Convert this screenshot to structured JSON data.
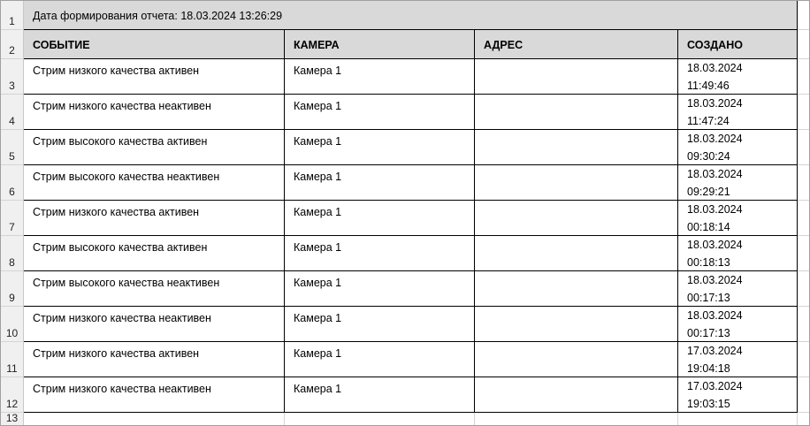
{
  "sheet": {
    "title": "Дата формирования отчета: 18.03.2024 13:26:29",
    "row_numbers": [
      "1",
      "2",
      "3",
      "4",
      "5",
      "6",
      "7",
      "8",
      "9",
      "10",
      "11",
      "12",
      "13"
    ],
    "headers": [
      "СОБЫТИЕ",
      "КАМЕРА",
      "АДРЕС",
      "СОЗДАНО"
    ],
    "rows": [
      {
        "event": "Стрим низкого качества активен",
        "camera": "Камера 1",
        "address": "",
        "date": "18.03.2024",
        "time": "11:49:46"
      },
      {
        "event": "Стрим низкого качества неактивен",
        "camera": "Камера 1",
        "address": "",
        "date": "18.03.2024",
        "time": "11:47:24"
      },
      {
        "event": "Стрим высокого качества активен",
        "camera": "Камера 1",
        "address": "",
        "date": "18.03.2024",
        "time": "09:30:24"
      },
      {
        "event": "Стрим высокого качества неактивен",
        "camera": "Камера 1",
        "address": "",
        "date": "18.03.2024",
        "time": "09:29:21"
      },
      {
        "event": "Стрим низкого качества активен",
        "camera": "Камера 1",
        "address": "",
        "date": "18.03.2024",
        "time": "00:18:14"
      },
      {
        "event": "Стрим высокого качества активен",
        "camera": "Камера 1",
        "address": "",
        "date": "18.03.2024",
        "time": "00:18:13"
      },
      {
        "event": "Стрим высокого качества неактивен",
        "camera": "Камера 1",
        "address": "",
        "date": "18.03.2024",
        "time": "00:17:13"
      },
      {
        "event": "Стрим низкого качества неактивен",
        "camera": "Камера 1",
        "address": "",
        "date": "18.03.2024",
        "time": "00:17:13"
      },
      {
        "event": "Стрим низкого качества активен",
        "camera": "Камера 1",
        "address": "",
        "date": "17.03.2024",
        "time": "19:04:18"
      },
      {
        "event": "Стрим низкого качества неактивен",
        "camera": "Камера 1",
        "address": "",
        "date": "17.03.2024",
        "time": "19:03:15"
      }
    ]
  }
}
